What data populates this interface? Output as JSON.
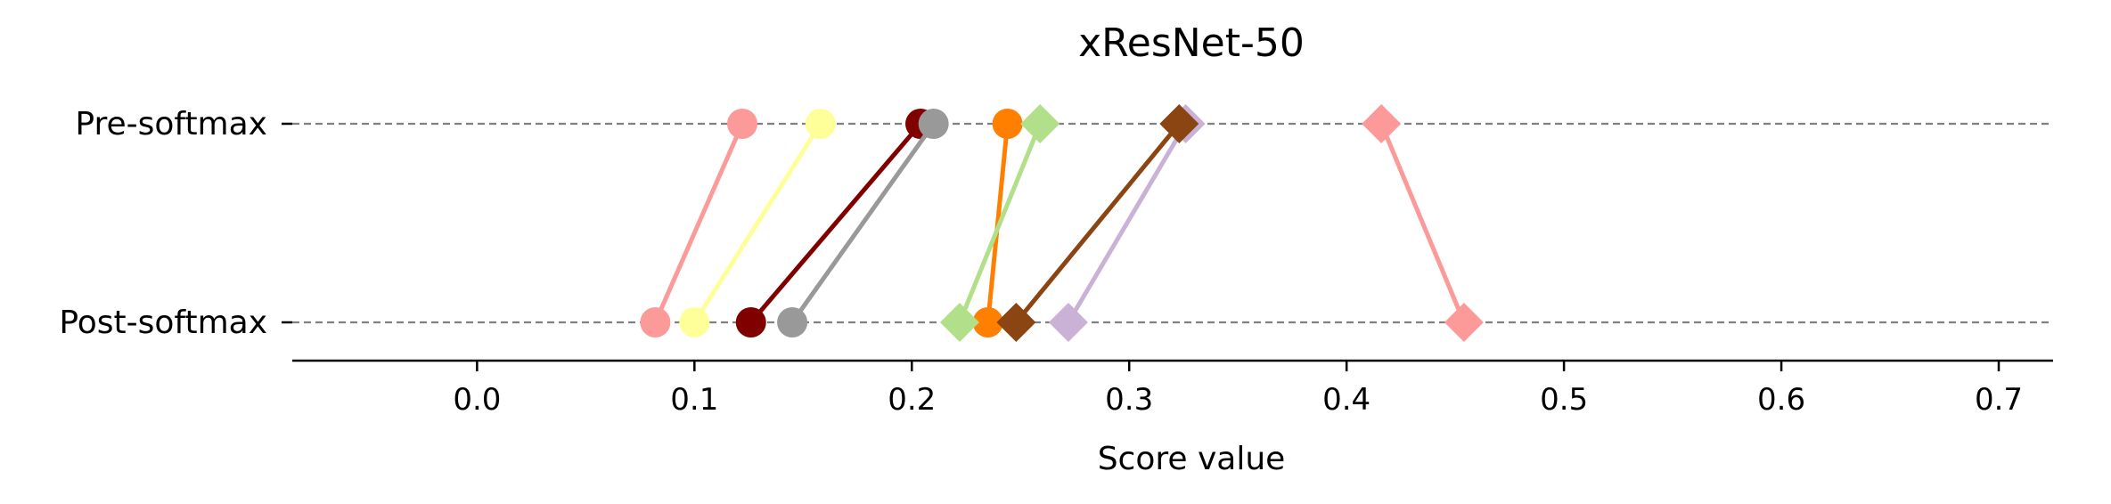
{
  "chart_data": {
    "type": "scatter",
    "title": "xResNet-50",
    "xlabel": "Score value",
    "ylabel": "",
    "xlim": [
      -0.085,
      0.725
    ],
    "x_ticks": [
      0.0,
      0.1,
      0.2,
      0.3,
      0.4,
      0.5,
      0.6,
      0.7
    ],
    "x_tick_labels": [
      "0.0",
      "0.1",
      "0.2",
      "0.3",
      "0.4",
      "0.5",
      "0.6",
      "0.7"
    ],
    "categories": [
      "Pre-softmax",
      "Post-softmax"
    ],
    "grid": "dashed horizontal lines at each category",
    "legend": "none",
    "series": [
      {
        "marker": "circle",
        "color": "#fb9a99",
        "values": [
          0.122,
          0.082
        ]
      },
      {
        "marker": "circle",
        "color": "#ffff99",
        "values": [
          0.158,
          0.1
        ]
      },
      {
        "marker": "circle",
        "color": "#800000",
        "values": [
          0.204,
          0.126
        ]
      },
      {
        "marker": "circle",
        "color": "#999999",
        "values": [
          0.21,
          0.145
        ]
      },
      {
        "marker": "circle",
        "color": "#ff7f00",
        "values": [
          0.244,
          0.235
        ]
      },
      {
        "marker": "diamond",
        "color": "#b2df8a",
        "values": [
          0.259,
          0.222
        ]
      },
      {
        "marker": "diamond",
        "color": "#cab2d6",
        "values": [
          0.326,
          0.272
        ]
      },
      {
        "marker": "diamond",
        "color": "#8b4513",
        "values": [
          0.323,
          0.248
        ]
      },
      {
        "marker": "diamond",
        "color": "#fb9a99",
        "values": [
          0.416,
          0.454
        ]
      }
    ]
  }
}
